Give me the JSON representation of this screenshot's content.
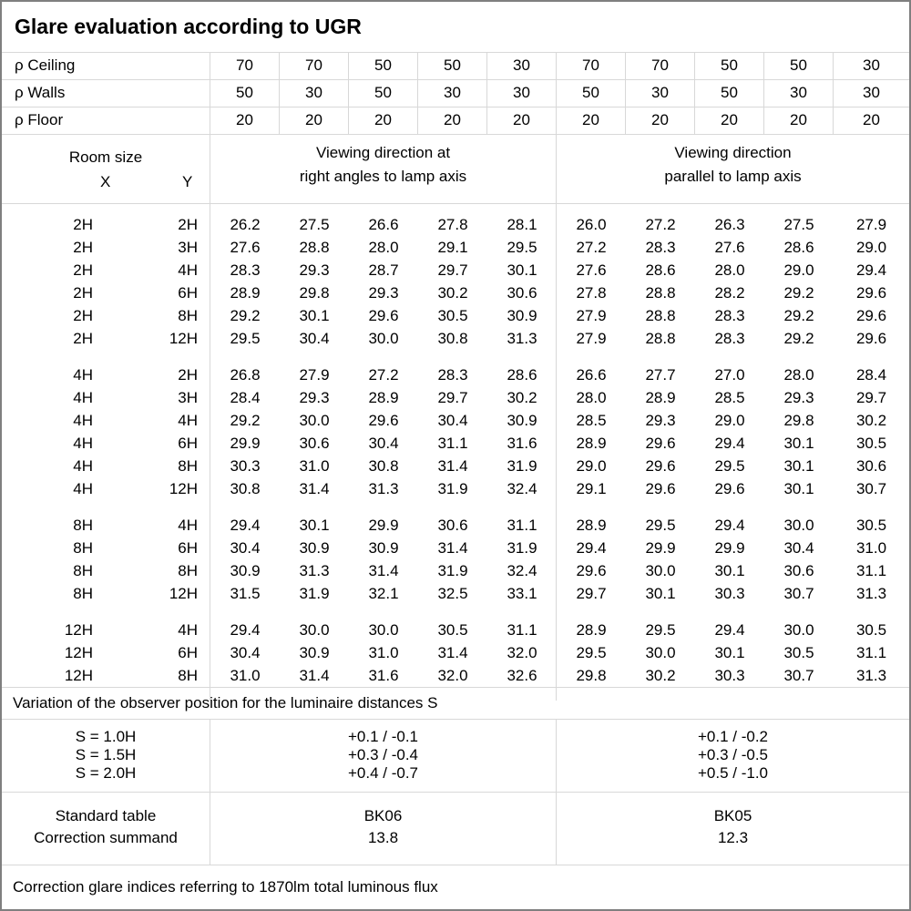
{
  "title": "Glare evaluation according to UGR",
  "reflectance_rows": [
    {
      "label": "ρ Ceiling",
      "values": [
        "70",
        "70",
        "50",
        "50",
        "30",
        "70",
        "70",
        "50",
        "50",
        "30"
      ]
    },
    {
      "label": "ρ Walls",
      "values": [
        "50",
        "30",
        "50",
        "30",
        "30",
        "50",
        "30",
        "50",
        "30",
        "30"
      ]
    },
    {
      "label": "ρ Floor",
      "values": [
        "20",
        "20",
        "20",
        "20",
        "20",
        "20",
        "20",
        "20",
        "20",
        "20"
      ]
    }
  ],
  "header": {
    "room_size_label": "Room size",
    "x_label": "X",
    "y_label": "Y",
    "group_right_angles": [
      "Viewing direction at",
      "right angles to lamp axis"
    ],
    "group_parallel": [
      "Viewing direction",
      "parallel to lamp axis"
    ]
  },
  "ugr_table": {
    "blocks": [
      {
        "rows": [
          {
            "x": "2H",
            "y": "2H",
            "right_angles": [
              "26.2",
              "27.5",
              "26.6",
              "27.8",
              "28.1"
            ],
            "parallel": [
              "26.0",
              "27.2",
              "26.3",
              "27.5",
              "27.9"
            ]
          },
          {
            "x": "2H",
            "y": "3H",
            "right_angles": [
              "27.6",
              "28.8",
              "28.0",
              "29.1",
              "29.5"
            ],
            "parallel": [
              "27.2",
              "28.3",
              "27.6",
              "28.6",
              "29.0"
            ]
          },
          {
            "x": "2H",
            "y": "4H",
            "right_angles": [
              "28.3",
              "29.3",
              "28.7",
              "29.7",
              "30.1"
            ],
            "parallel": [
              "27.6",
              "28.6",
              "28.0",
              "29.0",
              "29.4"
            ]
          },
          {
            "x": "2H",
            "y": "6H",
            "right_angles": [
              "28.9",
              "29.8",
              "29.3",
              "30.2",
              "30.6"
            ],
            "parallel": [
              "27.8",
              "28.8",
              "28.2",
              "29.2",
              "29.6"
            ]
          },
          {
            "x": "2H",
            "y": "8H",
            "right_angles": [
              "29.2",
              "30.1",
              "29.6",
              "30.5",
              "30.9"
            ],
            "parallel": [
              "27.9",
              "28.8",
              "28.3",
              "29.2",
              "29.6"
            ]
          },
          {
            "x": "2H",
            "y": "12H",
            "right_angles": [
              "29.5",
              "30.4",
              "30.0",
              "30.8",
              "31.3"
            ],
            "parallel": [
              "27.9",
              "28.8",
              "28.3",
              "29.2",
              "29.6"
            ]
          }
        ]
      },
      {
        "rows": [
          {
            "x": "4H",
            "y": "2H",
            "right_angles": [
              "26.8",
              "27.9",
              "27.2",
              "28.3",
              "28.6"
            ],
            "parallel": [
              "26.6",
              "27.7",
              "27.0",
              "28.0",
              "28.4"
            ]
          },
          {
            "x": "4H",
            "y": "3H",
            "right_angles": [
              "28.4",
              "29.3",
              "28.9",
              "29.7",
              "30.2"
            ],
            "parallel": [
              "28.0",
              "28.9",
              "28.5",
              "29.3",
              "29.7"
            ]
          },
          {
            "x": "4H",
            "y": "4H",
            "right_angles": [
              "29.2",
              "30.0",
              "29.6",
              "30.4",
              "30.9"
            ],
            "parallel": [
              "28.5",
              "29.3",
              "29.0",
              "29.8",
              "30.2"
            ]
          },
          {
            "x": "4H",
            "y": "6H",
            "right_angles": [
              "29.9",
              "30.6",
              "30.4",
              "31.1",
              "31.6"
            ],
            "parallel": [
              "28.9",
              "29.6",
              "29.4",
              "30.1",
              "30.5"
            ]
          },
          {
            "x": "4H",
            "y": "8H",
            "right_angles": [
              "30.3",
              "31.0",
              "30.8",
              "31.4",
              "31.9"
            ],
            "parallel": [
              "29.0",
              "29.6",
              "29.5",
              "30.1",
              "30.6"
            ]
          },
          {
            "x": "4H",
            "y": "12H",
            "right_angles": [
              "30.8",
              "31.4",
              "31.3",
              "31.9",
              "32.4"
            ],
            "parallel": [
              "29.1",
              "29.6",
              "29.6",
              "30.1",
              "30.7"
            ]
          }
        ]
      },
      {
        "rows": [
          {
            "x": "8H",
            "y": "4H",
            "right_angles": [
              "29.4",
              "30.1",
              "29.9",
              "30.6",
              "31.1"
            ],
            "parallel": [
              "28.9",
              "29.5",
              "29.4",
              "30.0",
              "30.5"
            ]
          },
          {
            "x": "8H",
            "y": "6H",
            "right_angles": [
              "30.4",
              "30.9",
              "30.9",
              "31.4",
              "31.9"
            ],
            "parallel": [
              "29.4",
              "29.9",
              "29.9",
              "30.4",
              "31.0"
            ]
          },
          {
            "x": "8H",
            "y": "8H",
            "right_angles": [
              "30.9",
              "31.3",
              "31.4",
              "31.9",
              "32.4"
            ],
            "parallel": [
              "29.6",
              "30.0",
              "30.1",
              "30.6",
              "31.1"
            ]
          },
          {
            "x": "8H",
            "y": "12H",
            "right_angles": [
              "31.5",
              "31.9",
              "32.1",
              "32.5",
              "33.1"
            ],
            "parallel": [
              "29.7",
              "30.1",
              "30.3",
              "30.7",
              "31.3"
            ]
          }
        ]
      },
      {
        "rows": [
          {
            "x": "12H",
            "y": "4H",
            "right_angles": [
              "29.4",
              "30.0",
              "30.0",
              "30.5",
              "31.1"
            ],
            "parallel": [
              "28.9",
              "29.5",
              "29.4",
              "30.0",
              "30.5"
            ]
          },
          {
            "x": "12H",
            "y": "6H",
            "right_angles": [
              "30.4",
              "30.9",
              "31.0",
              "31.4",
              "32.0"
            ],
            "parallel": [
              "29.5",
              "30.0",
              "30.1",
              "30.5",
              "31.1"
            ]
          },
          {
            "x": "12H",
            "y": "8H",
            "right_angles": [
              "31.0",
              "31.4",
              "31.6",
              "32.0",
              "32.6"
            ],
            "parallel": [
              "29.8",
              "30.2",
              "30.3",
              "30.7",
              "31.3"
            ]
          }
        ]
      }
    ]
  },
  "variation_note": "Variation of the observer position for the luminaire distances S",
  "observer_variation": {
    "rows": [
      {
        "s": "S = 1.0H",
        "right_angles": "+0.1 / -0.1",
        "parallel": "+0.1 / -0.2"
      },
      {
        "s": "S = 1.5H",
        "right_angles": "+0.3 / -0.4",
        "parallel": "+0.3 / -0.5"
      },
      {
        "s": "S = 2.0H",
        "right_angles": "+0.4 / -0.7",
        "parallel": "+0.5 / -1.0"
      }
    ]
  },
  "summary": {
    "standard_table_label": "Standard table",
    "correction_summand_label": "Correction summand",
    "right_angles": {
      "standard_table": "BK06",
      "correction_summand": "13.8"
    },
    "parallel": {
      "standard_table": "BK05",
      "correction_summand": "12.3"
    }
  },
  "footer_note": "Correction glare indices referring to 1870lm total luminous flux",
  "colors": {
    "background": "#ffffff",
    "text": "#000000",
    "border_outer": "#7f7f7f",
    "border_inner": "#d8d8d8"
  }
}
